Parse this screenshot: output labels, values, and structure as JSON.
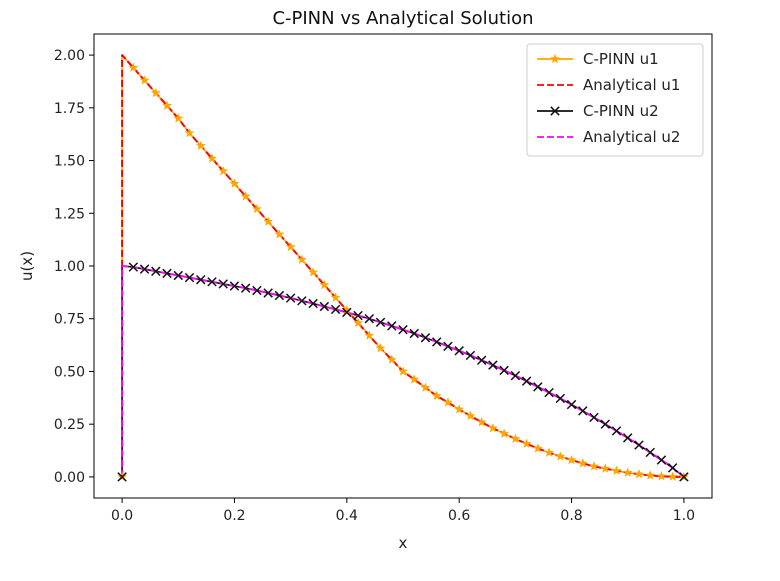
{
  "chart_data": {
    "type": "line",
    "title": "C-PINN vs Analytical Solution",
    "xlabel": "x",
    "ylabel": "u(x)",
    "xlim": [
      -0.05,
      1.05
    ],
    "ylim": [
      -0.1,
      2.1
    ],
    "xticks": [
      0.0,
      0.2,
      0.4,
      0.6,
      0.8,
      1.0
    ],
    "xtick_labels": [
      "0.0",
      "0.2",
      "0.4",
      "0.6",
      "0.8",
      "1.0"
    ],
    "yticks": [
      0.0,
      0.25,
      0.5,
      0.75,
      1.0,
      1.25,
      1.5,
      1.75,
      2.0
    ],
    "ytick_labels": [
      "0.00",
      "0.25",
      "0.50",
      "0.75",
      "1.00",
      "1.25",
      "1.50",
      "1.75",
      "2.00"
    ],
    "grid": false,
    "legend_position": "top-right",
    "series": [
      {
        "name": "C-PINN u1",
        "color": "#ffa500",
        "style": "solid",
        "marker": "star",
        "x": [
          0.0,
          0.0,
          0.02,
          0.04,
          0.06,
          0.08,
          0.1,
          0.12,
          0.14,
          0.16,
          0.18,
          0.2,
          0.22,
          0.24,
          0.26,
          0.28,
          0.3,
          0.32,
          0.34,
          0.36,
          0.38,
          0.4,
          0.42,
          0.44,
          0.46,
          0.48,
          0.5,
          0.52,
          0.54,
          0.56,
          0.58,
          0.6,
          0.62,
          0.64,
          0.66,
          0.68,
          0.7,
          0.72,
          0.74,
          0.76,
          0.78,
          0.8,
          0.82,
          0.84,
          0.86,
          0.88,
          0.9,
          0.92,
          0.94,
          0.96,
          0.98,
          1.0
        ],
        "y": [
          0.0,
          2.0,
          1.94,
          1.88,
          1.82,
          1.76,
          1.7,
          1.63,
          1.57,
          1.51,
          1.45,
          1.39,
          1.33,
          1.27,
          1.21,
          1.15,
          1.09,
          1.03,
          0.97,
          0.91,
          0.85,
          0.79,
          0.73,
          0.67,
          0.61,
          0.556,
          0.5,
          0.462,
          0.423,
          0.384,
          0.353,
          0.32,
          0.289,
          0.259,
          0.231,
          0.205,
          0.18,
          0.157,
          0.135,
          0.115,
          0.097,
          0.08,
          0.064,
          0.05,
          0.039,
          0.029,
          0.02,
          0.013,
          0.007,
          0.003,
          0.001,
          0.0
        ]
      },
      {
        "name": "Analytical u1",
        "color": "#ff0000",
        "style": "dashed",
        "marker": "none",
        "x": [
          0.0,
          0.0,
          0.02,
          0.04,
          0.06,
          0.08,
          0.1,
          0.12,
          0.14,
          0.16,
          0.18,
          0.2,
          0.22,
          0.24,
          0.26,
          0.28,
          0.3,
          0.32,
          0.34,
          0.36,
          0.38,
          0.4,
          0.42,
          0.44,
          0.46,
          0.48,
          0.5,
          0.52,
          0.54,
          0.56,
          0.58,
          0.6,
          0.62,
          0.64,
          0.66,
          0.68,
          0.7,
          0.72,
          0.74,
          0.76,
          0.78,
          0.8,
          0.82,
          0.84,
          0.86,
          0.88,
          0.9,
          0.92,
          0.94,
          0.96,
          0.98,
          1.0
        ],
        "y": [
          0.0,
          2.0,
          1.94,
          1.88,
          1.82,
          1.76,
          1.7,
          1.63,
          1.57,
          1.51,
          1.45,
          1.39,
          1.33,
          1.27,
          1.21,
          1.15,
          1.09,
          1.03,
          0.97,
          0.91,
          0.85,
          0.79,
          0.73,
          0.67,
          0.61,
          0.556,
          0.5,
          0.462,
          0.423,
          0.384,
          0.353,
          0.32,
          0.289,
          0.259,
          0.231,
          0.205,
          0.18,
          0.157,
          0.135,
          0.115,
          0.097,
          0.08,
          0.064,
          0.05,
          0.039,
          0.029,
          0.02,
          0.013,
          0.007,
          0.003,
          0.001,
          0.0
        ]
      },
      {
        "name": "C-PINN u2",
        "color": "#111111",
        "style": "solid",
        "marker": "x",
        "x": [
          0.0,
          0.0,
          0.02,
          0.04,
          0.06,
          0.08,
          0.1,
          0.12,
          0.14,
          0.16,
          0.18,
          0.2,
          0.22,
          0.24,
          0.26,
          0.28,
          0.3,
          0.32,
          0.34,
          0.36,
          0.38,
          0.4,
          0.42,
          0.44,
          0.46,
          0.48,
          0.5,
          0.52,
          0.54,
          0.56,
          0.58,
          0.6,
          0.62,
          0.64,
          0.66,
          0.68,
          0.7,
          0.72,
          0.74,
          0.76,
          0.78,
          0.8,
          0.82,
          0.84,
          0.86,
          0.88,
          0.9,
          0.92,
          0.94,
          0.96,
          0.98,
          1.0
        ],
        "y": [
          0.0,
          1.0,
          0.995,
          0.985,
          0.975,
          0.965,
          0.955,
          0.945,
          0.935,
          0.925,
          0.915,
          0.905,
          0.895,
          0.884,
          0.872,
          0.86,
          0.848,
          0.835,
          0.822,
          0.808,
          0.794,
          0.78,
          0.765,
          0.75,
          0.733,
          0.716,
          0.698,
          0.68,
          0.66,
          0.64,
          0.619,
          0.598,
          0.576,
          0.553,
          0.53,
          0.505,
          0.48,
          0.454,
          0.427,
          0.4,
          0.372,
          0.343,
          0.313,
          0.282,
          0.25,
          0.218,
          0.185,
          0.151,
          0.116,
          0.08,
          0.043,
          0.0
        ]
      },
      {
        "name": "Analytical u2",
        "color": "#ff00ff",
        "style": "dashed",
        "marker": "none",
        "x": [
          0.0,
          0.0,
          0.02,
          0.04,
          0.06,
          0.08,
          0.1,
          0.12,
          0.14,
          0.16,
          0.18,
          0.2,
          0.22,
          0.24,
          0.26,
          0.28,
          0.3,
          0.32,
          0.34,
          0.36,
          0.38,
          0.4,
          0.42,
          0.44,
          0.46,
          0.48,
          0.5,
          0.52,
          0.54,
          0.56,
          0.58,
          0.6,
          0.62,
          0.64,
          0.66,
          0.68,
          0.7,
          0.72,
          0.74,
          0.76,
          0.78,
          0.8,
          0.82,
          0.84,
          0.86,
          0.88,
          0.9,
          0.92,
          0.94,
          0.96,
          0.98,
          1.0
        ],
        "y": [
          0.0,
          1.0,
          0.995,
          0.985,
          0.975,
          0.965,
          0.955,
          0.945,
          0.935,
          0.925,
          0.915,
          0.905,
          0.895,
          0.884,
          0.872,
          0.86,
          0.848,
          0.835,
          0.822,
          0.808,
          0.794,
          0.78,
          0.765,
          0.75,
          0.733,
          0.716,
          0.698,
          0.68,
          0.66,
          0.64,
          0.619,
          0.598,
          0.576,
          0.553,
          0.53,
          0.505,
          0.48,
          0.454,
          0.427,
          0.4,
          0.372,
          0.343,
          0.313,
          0.282,
          0.25,
          0.218,
          0.185,
          0.151,
          0.116,
          0.08,
          0.043,
          0.0
        ]
      }
    ]
  }
}
